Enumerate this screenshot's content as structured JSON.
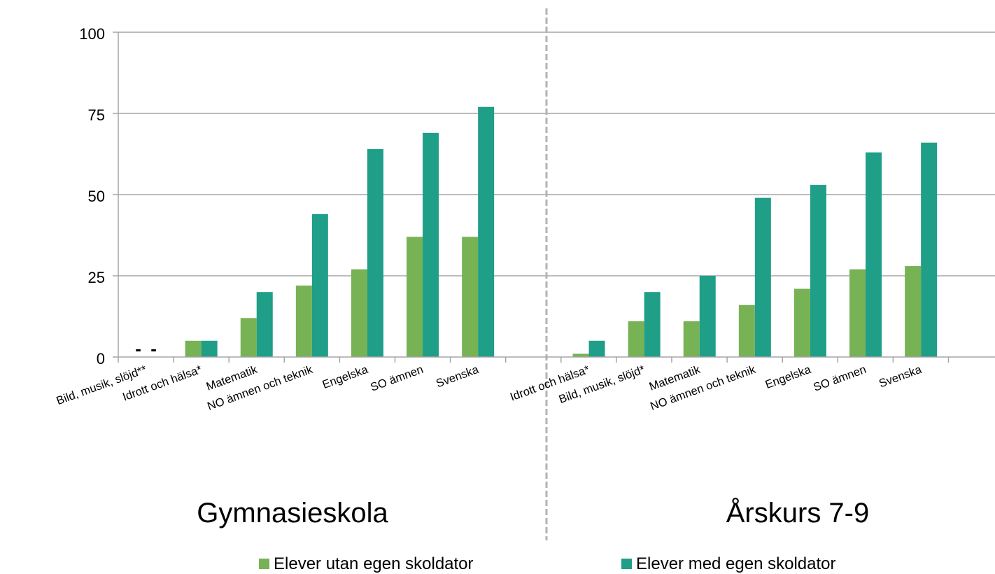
{
  "chart_data": {
    "type": "bar",
    "ylim": [
      0,
      100
    ],
    "yticks": [
      "0",
      "25",
      "50",
      "75",
      "100"
    ],
    "grid": true,
    "legend_placement": "bottom",
    "colors": {
      "without": "#77b255",
      "with": "#1f9e88",
      "axis": "#a6a6a6",
      "divider": "#b3b3b3"
    },
    "series_labels": [
      "Elever utan egen skoldator",
      "Elever med egen skoldator"
    ],
    "panels": [
      {
        "title": "Gymnasieskola",
        "categories": [
          "Bild, musik, slöjd**",
          "Idrott och hälsa*",
          "Matematik",
          "NO ämnen och teknik",
          "Engelska",
          "SO ämnen",
          "Svenska"
        ],
        "without": [
          null,
          5,
          12,
          22,
          27,
          37,
          37
        ],
        "with": [
          null,
          5,
          20,
          44,
          64,
          69,
          77
        ],
        "missing_marker": "-"
      },
      {
        "title": "Årskurs 7-9",
        "categories": [
          "Idrott och hälsa*",
          "Bild, musik, slöjd*",
          "Matematik",
          "NO ämnen och teknik",
          "Engelska",
          "SO ämnen",
          "Svenska"
        ],
        "without": [
          1,
          11,
          11,
          16,
          21,
          27,
          28
        ],
        "with": [
          5,
          20,
          25,
          49,
          53,
          63,
          66
        ]
      }
    ]
  }
}
